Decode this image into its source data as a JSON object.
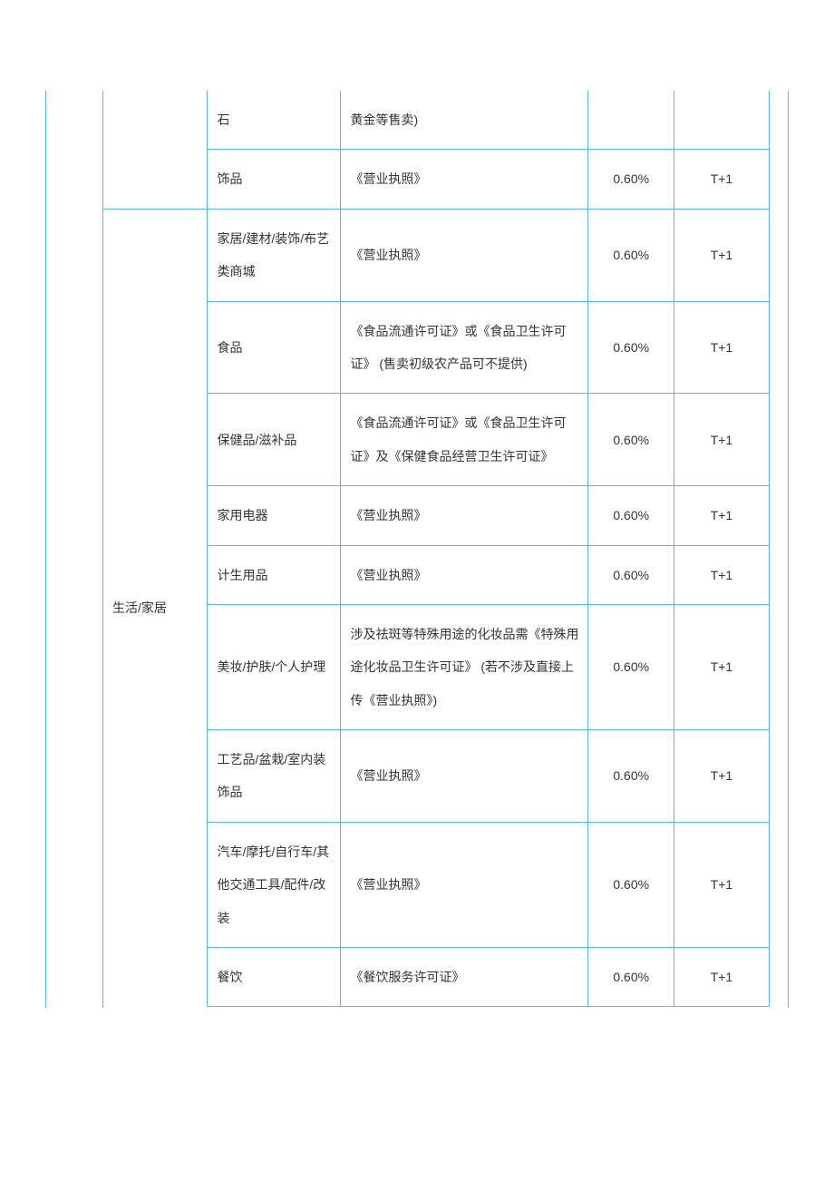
{
  "table": {
    "border_color": "#5ab4e6",
    "background_color": "#ffffff",
    "text_color": "#333333",
    "font_size": 14,
    "line_height": 2.6,
    "columns": {
      "leading_width": 60,
      "category_width": 110,
      "subcat_width": 140,
      "req_width": 260,
      "rate_width": 90,
      "settle_width": 100,
      "trailing_width": 20
    },
    "rows": [
      {
        "category": "",
        "category_span": 2,
        "subcat": "石",
        "requirement": "黄金等售卖)",
        "rate": "",
        "settle": "",
        "partial_top": true
      },
      {
        "subcat": "饰品",
        "requirement": "《营业执照》",
        "rate": "0.60%",
        "settle": "T+1"
      },
      {
        "category": "生活/家居",
        "category_span": 10,
        "subcat": "家居/建材/装饰/布艺类商城",
        "requirement": "《营业执照》",
        "rate": "0.60%",
        "settle": "T+1"
      },
      {
        "subcat": "食品",
        "requirement": "《食品流通许可证》或《食品卫生许可证》 (售卖初级农产品可不提供)",
        "rate": "0.60%",
        "settle": "T+1"
      },
      {
        "subcat": "保健品/滋补品",
        "requirement": "《食品流通许可证》或《食品卫生许可证》及《保健食品经营卫生许可证》",
        "rate": "0.60%",
        "settle": "T+1"
      },
      {
        "subcat": "家用电器",
        "requirement": "《营业执照》",
        "rate": "0.60%",
        "settle": "T+1"
      },
      {
        "subcat": "计生用品",
        "requirement": "《营业执照》",
        "rate": "0.60%",
        "settle": "T+1"
      },
      {
        "subcat": "美妆/护肤/个人护理",
        "requirement": "涉及祛斑等特殊用途的化妆品需《特殊用途化妆品卫生许可证》 (若不涉及直接上传《营业执照》)",
        "rate": "0.60%",
        "settle": "T+1"
      },
      {
        "subcat": "工艺品/盆栽/室内装饰品",
        "requirement": "《营业执照》",
        "rate": "0.60%",
        "settle": "T+1"
      },
      {
        "subcat": "汽车/摩托/自行车/其他交通工具/配件/改装",
        "requirement": "《营业执照》",
        "rate": "0.60%",
        "settle": "T+1"
      },
      {
        "subcat": "餐饮",
        "requirement": "《餐饮服务许可证》",
        "rate": "0.60%",
        "settle": "T+1"
      }
    ]
  }
}
